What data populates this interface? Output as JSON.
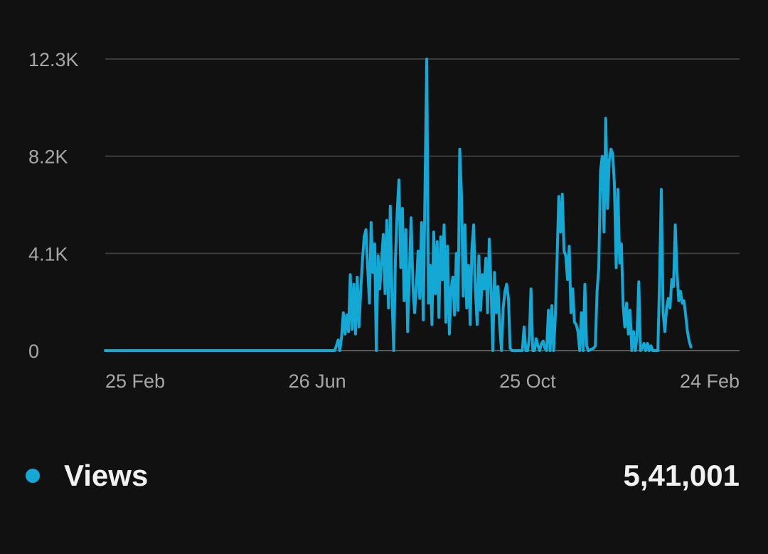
{
  "chart_data": {
    "type": "line",
    "title": "",
    "xlabel": "",
    "ylabel": "",
    "ylim": [
      0,
      12300
    ],
    "y_ticks": [
      {
        "value": 0,
        "label": "0"
      },
      {
        "value": 4100,
        "label": "4.1K"
      },
      {
        "value": 8200,
        "label": "8.2K"
      },
      {
        "value": 12300,
        "label": "12.3K"
      }
    ],
    "x_ticks": [
      {
        "day": 0,
        "label": "25 Feb"
      },
      {
        "day": 122,
        "label": "26 Jun"
      },
      {
        "day": 243,
        "label": "25 Oct"
      },
      {
        "day": 365,
        "label": "24 Feb"
      }
    ],
    "grid": true,
    "legend_position": "bottom",
    "series": [
      {
        "name": "Views",
        "total": "5,41,001",
        "color": "#14a8d4",
        "points": [
          [
            0,
            0
          ],
          [
            132,
            0
          ],
          [
            133,
            200
          ],
          [
            134,
            450
          ],
          [
            135,
            0
          ],
          [
            136,
            600
          ],
          [
            137,
            1600
          ],
          [
            138,
            700
          ],
          [
            139,
            1500
          ],
          [
            140,
            800
          ],
          [
            141,
            3200
          ],
          [
            142,
            900
          ],
          [
            143,
            2800
          ],
          [
            144,
            700
          ],
          [
            145,
            3100
          ],
          [
            146,
            1000
          ],
          [
            147,
            2500
          ],
          [
            148,
            3800
          ],
          [
            149,
            4800
          ],
          [
            150,
            5100
          ],
          [
            151,
            3500
          ],
          [
            152,
            2000
          ],
          [
            153,
            5400
          ],
          [
            154,
            3300
          ],
          [
            155,
            4500
          ],
          [
            156,
            0
          ],
          [
            157,
            4000
          ],
          [
            158,
            2600
          ],
          [
            159,
            3800
          ],
          [
            160,
            4900
          ],
          [
            161,
            2400
          ],
          [
            162,
            5500
          ],
          [
            163,
            1800
          ],
          [
            164,
            6100
          ],
          [
            165,
            2300
          ],
          [
            166,
            0
          ],
          [
            167,
            3900
          ],
          [
            168,
            5900
          ],
          [
            169,
            7200
          ],
          [
            170,
            3500
          ],
          [
            171,
            6000
          ],
          [
            172,
            2100
          ],
          [
            173,
            5100
          ],
          [
            174,
            800
          ],
          [
            175,
            3300
          ],
          [
            176,
            5600
          ],
          [
            177,
            2800
          ],
          [
            178,
            1600
          ],
          [
            179,
            2600
          ],
          [
            180,
            4200
          ],
          [
            181,
            2200
          ],
          [
            182,
            5400
          ],
          [
            183,
            1300
          ],
          [
            184,
            6900
          ],
          [
            185,
            12300
          ],
          [
            186,
            2000
          ],
          [
            187,
            3600
          ],
          [
            188,
            1100
          ],
          [
            189,
            5000
          ],
          [
            190,
            2400
          ],
          [
            191,
            4600
          ],
          [
            192,
            1400
          ],
          [
            193,
            4800
          ],
          [
            194,
            3000
          ],
          [
            195,
            5300
          ],
          [
            196,
            1200
          ],
          [
            197,
            4400
          ],
          [
            198,
            700
          ],
          [
            199,
            2600
          ],
          [
            200,
            3100
          ],
          [
            201,
            1500
          ],
          [
            202,
            4100
          ],
          [
            203,
            1700
          ],
          [
            204,
            8500
          ],
          [
            205,
            6500
          ],
          [
            206,
            2300
          ],
          [
            207,
            5300
          ],
          [
            208,
            1800
          ],
          [
            209,
            3600
          ],
          [
            210,
            1100
          ],
          [
            211,
            4300
          ],
          [
            212,
            5300
          ],
          [
            213,
            2600
          ],
          [
            214,
            1100
          ],
          [
            215,
            4000
          ],
          [
            216,
            1700
          ],
          [
            217,
            3200
          ],
          [
            218,
            2600
          ],
          [
            219,
            3900
          ],
          [
            220,
            1600
          ],
          [
            221,
            4700
          ],
          [
            222,
            2700
          ],
          [
            223,
            0
          ],
          [
            224,
            3300
          ],
          [
            225,
            1600
          ],
          [
            226,
            2700
          ],
          [
            227,
            1000
          ],
          [
            228,
            0
          ],
          [
            229,
            1800
          ],
          [
            230,
            2500
          ],
          [
            231,
            2800
          ],
          [
            232,
            2200
          ],
          [
            233,
            100
          ],
          [
            234,
            0
          ],
          [
            240,
            0
          ],
          [
            241,
            1000
          ],
          [
            242,
            0
          ],
          [
            243,
            0
          ],
          [
            244,
            500
          ],
          [
            245,
            2600
          ],
          [
            246,
            0
          ],
          [
            247,
            0
          ],
          [
            248,
            500
          ],
          [
            249,
            200
          ],
          [
            250,
            0
          ],
          [
            251,
            300
          ],
          [
            252,
            400
          ],
          [
            253,
            100
          ],
          [
            254,
            0
          ],
          [
            255,
            1700
          ],
          [
            256,
            0
          ],
          [
            257,
            1900
          ],
          [
            258,
            0
          ],
          [
            259,
            1500
          ],
          [
            260,
            3900
          ],
          [
            261,
            6500
          ],
          [
            262,
            5000
          ],
          [
            263,
            6600
          ],
          [
            264,
            4200
          ],
          [
            265,
            4000
          ],
          [
            266,
            3000
          ],
          [
            267,
            4400
          ],
          [
            268,
            1600
          ],
          [
            269,
            2600
          ],
          [
            270,
            1200
          ],
          [
            271,
            1100
          ],
          [
            272,
            800
          ],
          [
            273,
            0
          ],
          [
            274,
            1600
          ],
          [
            275,
            0
          ],
          [
            276,
            2800
          ],
          [
            277,
            200
          ],
          [
            278,
            0
          ],
          [
            281,
            100
          ],
          [
            282,
            200
          ],
          [
            283,
            2500
          ],
          [
            284,
            3500
          ],
          [
            285,
            7600
          ],
          [
            286,
            8200
          ],
          [
            287,
            5000
          ],
          [
            288,
            9800
          ],
          [
            289,
            6000
          ],
          [
            290,
            8000
          ],
          [
            291,
            8500
          ],
          [
            292,
            8300
          ],
          [
            293,
            7000
          ],
          [
            294,
            3500
          ],
          [
            295,
            6800
          ],
          [
            296,
            3700
          ],
          [
            297,
            4500
          ],
          [
            298,
            1900
          ],
          [
            299,
            1000
          ],
          [
            300,
            2000
          ],
          [
            301,
            700
          ],
          [
            302,
            1700
          ],
          [
            303,
            0
          ],
          [
            304,
            800
          ],
          [
            305,
            0
          ],
          [
            306,
            600
          ],
          [
            307,
            2900
          ],
          [
            308,
            0
          ],
          [
            309,
            100
          ],
          [
            310,
            300
          ],
          [
            311,
            0
          ],
          [
            312,
            300
          ],
          [
            313,
            0
          ],
          [
            314,
            200
          ],
          [
            315,
            0
          ],
          [
            318,
            0
          ],
          [
            319,
            3100
          ],
          [
            320,
            6800
          ],
          [
            321,
            1600
          ],
          [
            322,
            800
          ],
          [
            323,
            1800
          ],
          [
            324,
            2200
          ],
          [
            325,
            1800
          ],
          [
            326,
            3000
          ],
          [
            327,
            2700
          ],
          [
            328,
            5300
          ],
          [
            329,
            3300
          ],
          [
            330,
            2100
          ],
          [
            331,
            2500
          ],
          [
            332,
            2000
          ],
          [
            333,
            2100
          ],
          [
            334,
            1500
          ],
          [
            335,
            800
          ],
          [
            336,
            400
          ],
          [
            337,
            150
          ]
        ]
      }
    ]
  }
}
